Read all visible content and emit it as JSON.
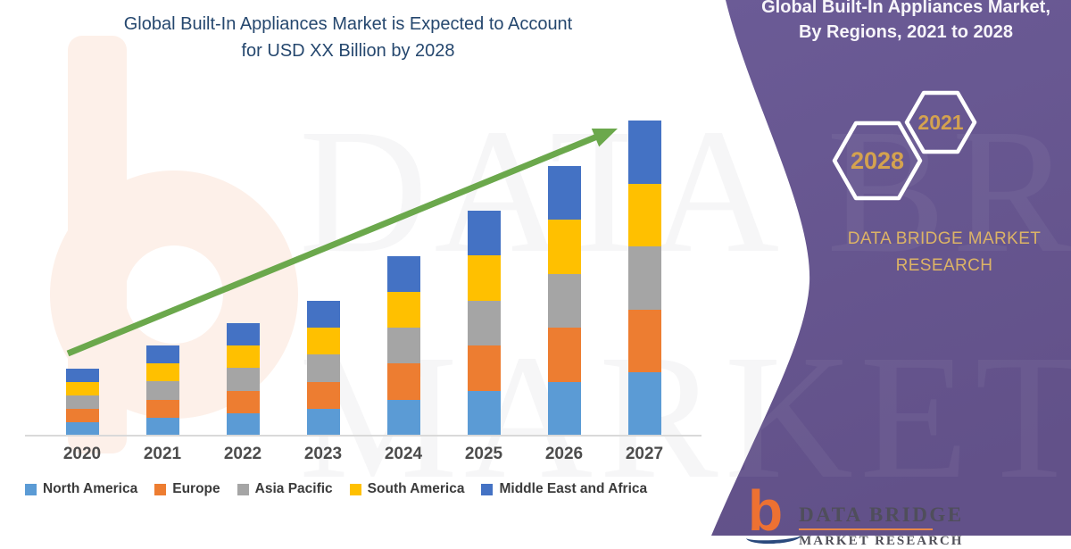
{
  "header": {
    "title_line1": "Global Built-In Appliances Market is Expected to Account",
    "title_line2": "for USD XX Billion by 2028"
  },
  "panel": {
    "title_line1": "Global Built-In Appliances Market,",
    "title_line2": "By Regions, 2021 to 2028",
    "hexagons": [
      {
        "year": "2028"
      },
      {
        "year": "2021"
      }
    ],
    "brand_line1": "DATA BRIDGE MARKET",
    "brand_line2": "RESEARCH",
    "colors": {
      "panel_purple": "#665590",
      "hexagon_gold": "#d4a24f",
      "brand_gold": "#dcb366"
    }
  },
  "logo": {
    "monogram": "b",
    "line1": "DATA BRIDGE",
    "line2": "MARKET RESEARCH"
  },
  "watermark": {
    "row1": "DATA BRIDGE",
    "row2": "MARKET RESEARCH"
  },
  "chart_data": {
    "type": "bar",
    "stacked": true,
    "title": "Global Built-In Appliances Market is Expected to Account for USD XX Billion by 2028",
    "categories": [
      "2020",
      "2021",
      "2022",
      "2023",
      "2024",
      "2025",
      "2026",
      "2027"
    ],
    "series": [
      {
        "name": "North America",
        "color": "#5B9BD5",
        "values": [
          0.6,
          0.8,
          1.0,
          1.2,
          1.6,
          2.0,
          2.4,
          2.8
        ]
      },
      {
        "name": "Europe",
        "color": "#ED7D31",
        "values": [
          0.6,
          0.8,
          1.0,
          1.2,
          1.6,
          2.0,
          2.4,
          2.8
        ]
      },
      {
        "name": "Asia Pacific",
        "color": "#A5A5A5",
        "values": [
          0.6,
          0.8,
          1.0,
          1.2,
          1.6,
          2.0,
          2.4,
          2.8
        ]
      },
      {
        "name": "South America",
        "color": "#FFC000",
        "values": [
          0.6,
          0.8,
          1.0,
          1.2,
          1.6,
          2.0,
          2.4,
          2.8
        ]
      },
      {
        "name": "Middle East and Africa",
        "color": "#4472C4",
        "values": [
          0.6,
          0.8,
          1.0,
          1.2,
          1.6,
          2.0,
          2.4,
          2.8
        ]
      }
    ],
    "stack_totals": [
      3,
      4,
      5,
      6,
      8,
      10,
      12,
      14
    ],
    "xlabel": "",
    "ylabel": "",
    "y_axis_labels_visible": false,
    "value_unit": "USD XX Billion (axis unlabeled, relative heights)",
    "grid": false,
    "legend_position": "bottom",
    "trend_arrow": {
      "color": "#6BA84C",
      "direction": "up-right"
    }
  }
}
